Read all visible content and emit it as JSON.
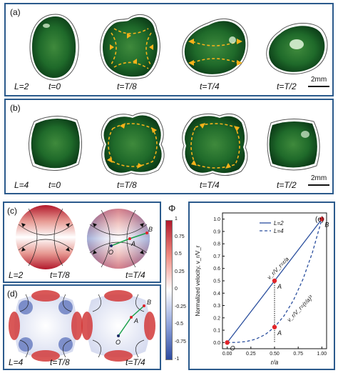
{
  "panel_a": {
    "label": "(a)",
    "L": "L=2",
    "times": [
      "t=0",
      "t=T/8",
      "t=T/4",
      "t=T/2"
    ],
    "scale": "2mm"
  },
  "panel_b": {
    "label": "(b)",
    "L": "L=4",
    "times": [
      "t=0",
      "t=T/8",
      "t=T/4",
      "t=T/2"
    ],
    "scale": "2mm"
  },
  "panel_c": {
    "label": "(c)",
    "L": "L=2",
    "times": [
      "t=T/8",
      "t=T/4"
    ],
    "points": [
      "O",
      "A",
      "B"
    ]
  },
  "panel_d": {
    "label": "(d)",
    "L": "L=4",
    "times": [
      "t=T/8",
      "t=T/4"
    ],
    "points": [
      "O",
      "A",
      "B"
    ]
  },
  "colorbar": {
    "title": "Φ",
    "ticks": [
      "1",
      "0.75",
      "0.5",
      "0.25",
      "0",
      "-0.25",
      "-0.5",
      "-0.75",
      "-1"
    ],
    "colors": {
      "high": "#b2182b",
      "mid": "#ffffff",
      "low": "#2c4aa0"
    }
  },
  "chart_data": {
    "type": "line",
    "panel_label": "(e)",
    "xlabel": "r/a",
    "ylabel": "Normalized velocity, v_r/V_r",
    "xlim": [
      -0.05,
      1.05
    ],
    "ylim": [
      -0.05,
      1.05
    ],
    "xticks": [
      "0.00",
      "0.25",
      "0.50",
      "0.75",
      "1.00"
    ],
    "yticks": [
      "0.0",
      "0.1",
      "0.2",
      "0.3",
      "0.4",
      "0.5",
      "0.6",
      "0.7",
      "0.8",
      "0.9",
      "1.0"
    ],
    "series": [
      {
        "name": "L=2",
        "style": "solid",
        "color": "#2b4f9e",
        "x": [
          0,
          0.5,
          1.0
        ],
        "y": [
          0,
          0.5,
          1.0
        ]
      },
      {
        "name": "L=4",
        "style": "dashed",
        "color": "#2b4f9e",
        "x": [
          0,
          0.1,
          0.2,
          0.3,
          0.4,
          0.5,
          0.6,
          0.7,
          0.8,
          0.9,
          1.0
        ],
        "y": [
          0,
          0.001,
          0.008,
          0.027,
          0.064,
          0.125,
          0.216,
          0.343,
          0.512,
          0.729,
          1.0
        ]
      }
    ],
    "points": [
      {
        "label": "O",
        "x": 0,
        "y": 0
      },
      {
        "label": "A",
        "x": 0.5,
        "y": 0.5
      },
      {
        "label": "A",
        "x": 0.5,
        "y": 0.125
      },
      {
        "label": "B",
        "x": 1.0,
        "y": 1.0
      }
    ],
    "point_color": "#e0242a",
    "annotations": [
      "v_r/V_r=r/a",
      "v_r/V_r=(r/a)³"
    ],
    "legend_position": "top-center"
  }
}
